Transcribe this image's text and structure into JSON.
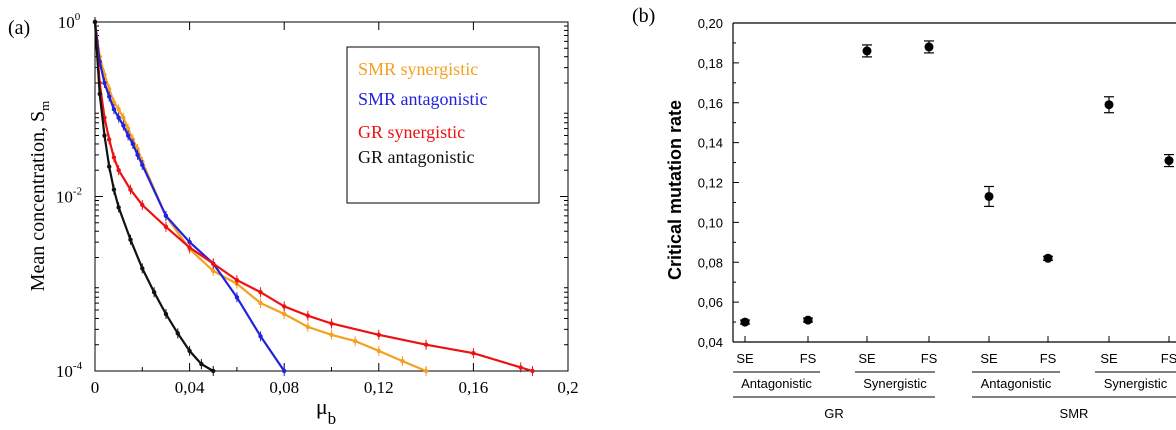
{
  "panel_a": {
    "panel_label": "(a)",
    "xlabel_main": "μ",
    "xlabel_sub": "b",
    "ylabel_main": "Mean concentration, S",
    "ylabel_sub": "m",
    "x_ticks": [
      0,
      0.04,
      0.08,
      0.12,
      0.16,
      0.2
    ],
    "x_tick_labels": [
      "0",
      "0,04",
      "0,08",
      "0,12",
      "0,16",
      "0,2"
    ],
    "y_ticks": [
      {
        "value": 1,
        "base": "10",
        "exp": "0"
      },
      {
        "value": 0.01,
        "base": "10",
        "exp": "-2"
      },
      {
        "value": 0.0001,
        "base": "10",
        "exp": "-4"
      }
    ]
  },
  "panel_b": {
    "panel_label": "(b)",
    "ylabel": "Critical mutation rate",
    "y_tick_labels": [
      "0,04",
      "0,06",
      "0,08",
      "0,10",
      "0,12",
      "0,14",
      "0,16",
      "0,18",
      "0,20"
    ],
    "x_labels": [
      "SE",
      "FS",
      "SE",
      "FS",
      "SE",
      "FS",
      "SE",
      "FS"
    ],
    "group_labels": [
      "Antagonistic",
      "Synergistic",
      "Antagonistic",
      "Synergistic"
    ],
    "super_labels": [
      "GR",
      "SMR"
    ]
  },
  "chart_data": [
    {
      "type": "line",
      "xlabel": "μb",
      "ylabel": "Mean concentration, Sm",
      "xlim": [
        0,
        0.2
      ],
      "ylim": [
        0.0001,
        1
      ],
      "y_scale": "log",
      "legend": {
        "placement": "top-right"
      },
      "series": [
        {
          "name": "SMR synergistic",
          "color": "#f5a020",
          "x": [
            0,
            0.002,
            0.004,
            0.006,
            0.008,
            0.01,
            0.012,
            0.014,
            0.016,
            0.018,
            0.02,
            0.03,
            0.04,
            0.05,
            0.06,
            0.07,
            0.08,
            0.09,
            0.1,
            0.11,
            0.12,
            0.13,
            0.14
          ],
          "y": [
            1,
            0.4,
            0.25,
            0.17,
            0.12,
            0.1,
            0.08,
            0.06,
            0.045,
            0.035,
            0.025,
            0.006,
            0.0025,
            0.0014,
            0.001,
            0.0006,
            0.00045,
            0.00032,
            0.00026,
            0.00022,
            0.00017,
            0.00013,
            0.0001
          ]
        },
        {
          "name": "SMR antagonistic",
          "color": "#2222dd",
          "x": [
            0,
            0.002,
            0.004,
            0.006,
            0.008,
            0.01,
            0.012,
            0.014,
            0.016,
            0.018,
            0.02,
            0.03,
            0.04,
            0.05,
            0.06,
            0.07,
            0.08
          ],
          "y": [
            1,
            0.35,
            0.2,
            0.14,
            0.1,
            0.08,
            0.065,
            0.05,
            0.04,
            0.03,
            0.023,
            0.006,
            0.003,
            0.0017,
            0.0007,
            0.00025,
            0.0001
          ]
        },
        {
          "name": "GR synergistic",
          "color": "#ee1111",
          "x": [
            0,
            0.002,
            0.004,
            0.006,
            0.008,
            0.01,
            0.015,
            0.02,
            0.03,
            0.04,
            0.05,
            0.06,
            0.07,
            0.08,
            0.09,
            0.1,
            0.12,
            0.14,
            0.16,
            0.18,
            0.185
          ],
          "y": [
            1,
            0.2,
            0.08,
            0.045,
            0.028,
            0.02,
            0.012,
            0.008,
            0.0045,
            0.0026,
            0.0017,
            0.0011,
            0.0008,
            0.00055,
            0.00043,
            0.00035,
            0.00026,
            0.0002,
            0.00016,
            0.00011,
            0.0001
          ]
        },
        {
          "name": "GR antagonistic",
          "color": "#111111",
          "x": [
            0,
            0.002,
            0.004,
            0.006,
            0.008,
            0.01,
            0.015,
            0.02,
            0.025,
            0.03,
            0.035,
            0.04,
            0.045,
            0.05
          ],
          "y": [
            1,
            0.15,
            0.05,
            0.022,
            0.012,
            0.0075,
            0.0032,
            0.0015,
            0.0008,
            0.00045,
            0.00027,
            0.00017,
            0.00012,
            0.0001
          ]
        }
      ]
    },
    {
      "type": "scatter",
      "ylabel": "Critical mutation rate",
      "ylim": [
        0.04,
        0.2
      ],
      "categories": [
        "SE",
        "FS",
        "SE",
        "FS",
        "SE",
        "FS",
        "SE",
        "FS"
      ],
      "values": [
        0.05,
        0.051,
        0.186,
        0.188,
        0.113,
        0.082,
        0.159,
        0.131
      ],
      "errors": [
        0.001,
        0.001,
        0.003,
        0.003,
        0.005,
        0.001,
        0.004,
        0.003
      ],
      "color": "#000000"
    }
  ]
}
